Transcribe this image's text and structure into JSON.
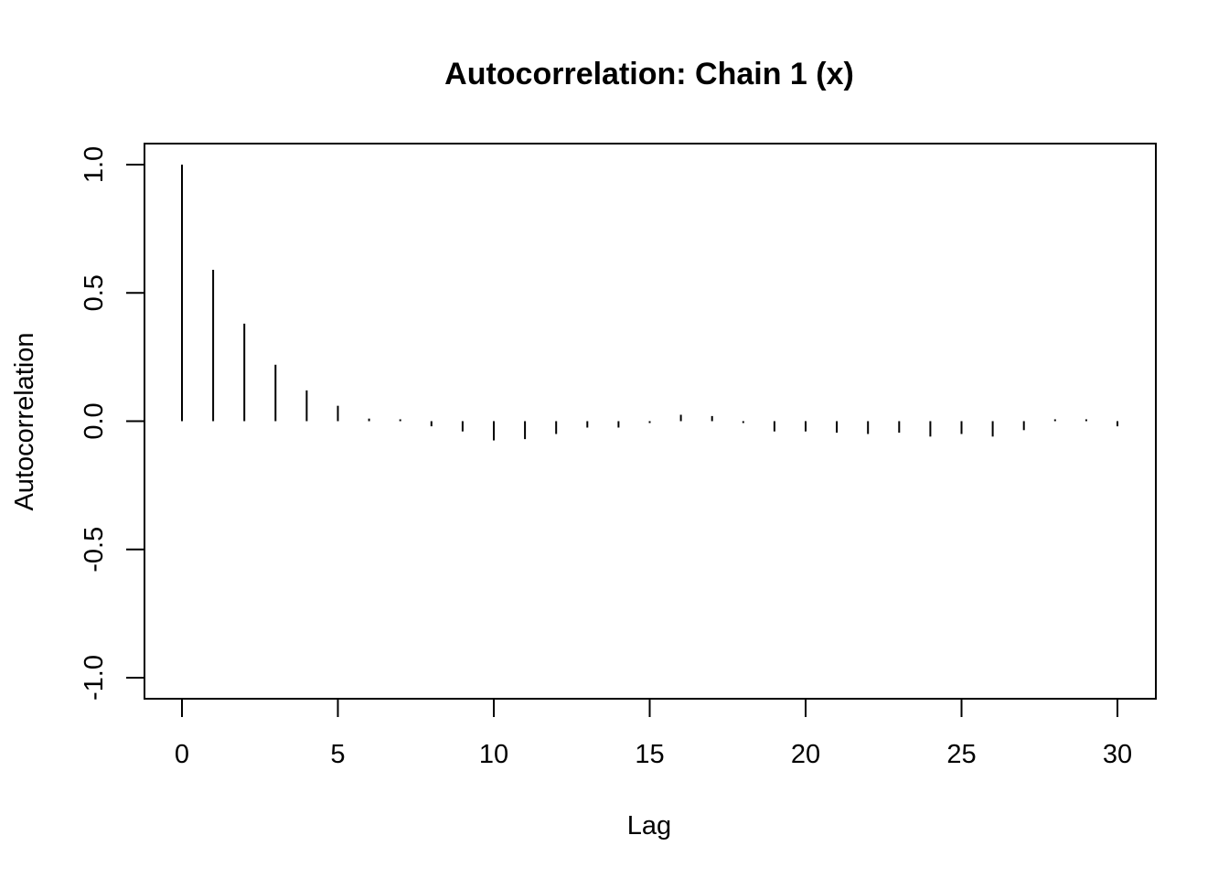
{
  "chart_data": {
    "type": "bar",
    "title": "Autocorrelation: Chain 1 (x)",
    "xlabel": "Lag",
    "ylabel": "Autocorrelation",
    "xlim": [
      0,
      30
    ],
    "ylim": [
      -1,
      1
    ],
    "x_ticks": [
      "0",
      "5",
      "10",
      "15",
      "20",
      "25",
      "30"
    ],
    "y_ticks": [
      "-1.0",
      "-0.5",
      "0.0",
      "0.5",
      "1.0"
    ],
    "grid": false,
    "legend": "none",
    "series": [
      {
        "x": [
          0,
          1,
          2,
          3,
          4,
          5,
          6,
          7,
          8,
          9,
          10,
          11,
          12,
          13,
          14,
          15,
          16,
          17,
          18,
          19,
          20,
          21,
          22,
          23,
          24,
          25,
          26,
          27,
          28,
          29,
          30
        ],
        "values": [
          1.0,
          0.59,
          0.38,
          0.22,
          0.12,
          0.06,
          0.01,
          0.005,
          -0.02,
          -0.04,
          -0.075,
          -0.07,
          -0.05,
          -0.025,
          -0.025,
          -0.005,
          0.025,
          0.02,
          -0.005,
          -0.04,
          -0.04,
          -0.045,
          -0.05,
          -0.045,
          -0.06,
          -0.05,
          -0.06,
          -0.035,
          0.005,
          0.005,
          -0.02
        ]
      }
    ]
  }
}
